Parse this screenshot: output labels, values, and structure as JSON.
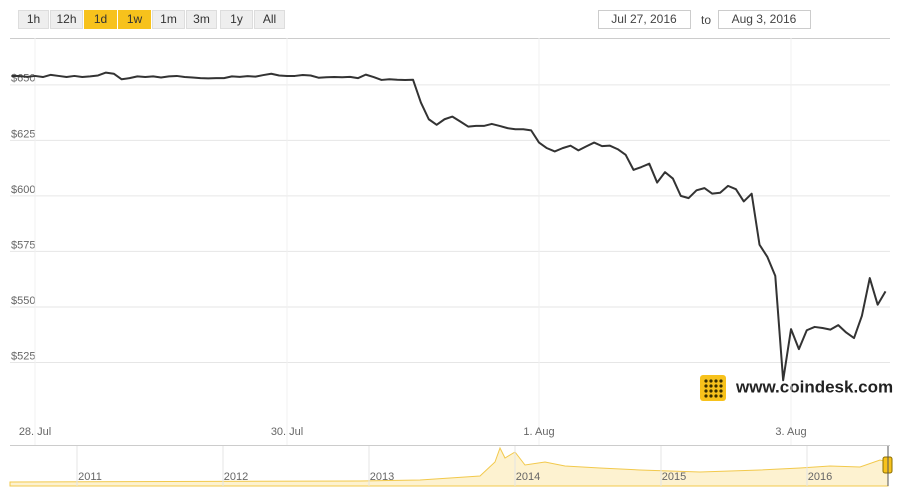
{
  "range_buttons": [
    {
      "label": "1h",
      "active": false
    },
    {
      "label": "12h",
      "active": false
    },
    {
      "label": "1d",
      "active": true
    },
    {
      "label": "1w",
      "active": true
    },
    {
      "label": "1m",
      "active": false
    },
    {
      "label": "3m",
      "active": false
    },
    {
      "label": "1y",
      "active": false
    },
    {
      "label": "All",
      "active": false
    }
  ],
  "date_range": {
    "from": "Jul 27, 2016",
    "separator": "to",
    "to": "Aug 3, 2016"
  },
  "watermark": "www.coindesk.com",
  "navigator": {
    "years": [
      "2011",
      "2012",
      "2013",
      "2014",
      "2015",
      "2016"
    ]
  },
  "chart_data": {
    "type": "line",
    "color": "#333333",
    "grid": true,
    "categories": [
      null,
      null,
      null,
      "28. Jul",
      null,
      null,
      null,
      null,
      null,
      null,
      null,
      null,
      null,
      null,
      null,
      null,
      null,
      null,
      null,
      null,
      null,
      null,
      null,
      null,
      null,
      null,
      null,
      null,
      null,
      null,
      null,
      null,
      null,
      null,
      null,
      "30. Jul",
      null,
      null,
      null,
      null,
      null,
      null,
      null,
      null,
      null,
      null,
      null,
      null,
      null,
      null,
      null,
      null,
      null,
      null,
      null,
      null,
      null,
      null,
      null,
      null,
      null,
      null,
      null,
      null,
      null,
      null,
      null,
      "1. Aug",
      null,
      null,
      null,
      null,
      null,
      null,
      null,
      null,
      null,
      null,
      null,
      null,
      null,
      null,
      null,
      null,
      null,
      null,
      null,
      null,
      null,
      null,
      null,
      null,
      null,
      null,
      null,
      null,
      null,
      null,
      null,
      "3. Aug",
      null,
      null,
      null,
      null,
      null,
      null,
      null,
      null,
      null,
      null,
      null,
      null
    ],
    "values": [
      654,
      654,
      653.6,
      654,
      653.5,
      654.5,
      654,
      653.5,
      654,
      653.5,
      653.8,
      654.2,
      655.5,
      655,
      652.5,
      653,
      653.8,
      653.5,
      653.8,
      653.3,
      653.8,
      654,
      653.5,
      653.3,
      653,
      652.9,
      653,
      653,
      653.8,
      653.6,
      653.9,
      653.7,
      654.4,
      655,
      654.2,
      654,
      654,
      654.4,
      654.2,
      653.2,
      653.4,
      653.5,
      653.4,
      653.6,
      653,
      654.6,
      653.5,
      652.2,
      652.5,
      652.3,
      652.2,
      652.3,
      642,
      634.5,
      632,
      634.5,
      635.7,
      633.5,
      631.2,
      631.5,
      631.5,
      632.4,
      631.5,
      630.5,
      630,
      630,
      629.5,
      624,
      621.5,
      620,
      621.5,
      622.6,
      620.5,
      622.3,
      624,
      622.4,
      622.6,
      621,
      618.5,
      611.7,
      613,
      614.5,
      606,
      610.7,
      607.8,
      600,
      599,
      602.5,
      603.5,
      601,
      601.4,
      604.5,
      603,
      597.5,
      601,
      578,
      572.5,
      564,
      517,
      540,
      531,
      539.5,
      541,
      540.5,
      539.8,
      541.8,
      538.5,
      536,
      546,
      563,
      551,
      557
    ],
    "ylim": [
      500,
      670
    ],
    "yticks": [
      {
        "value": 525,
        "label": "$525"
      },
      {
        "value": 550,
        "label": "$550"
      },
      {
        "value": 575,
        "label": "$575"
      },
      {
        "value": 600,
        "label": "$600"
      },
      {
        "value": 625,
        "label": "$625"
      },
      {
        "value": 650,
        "label": "$650"
      }
    ]
  }
}
